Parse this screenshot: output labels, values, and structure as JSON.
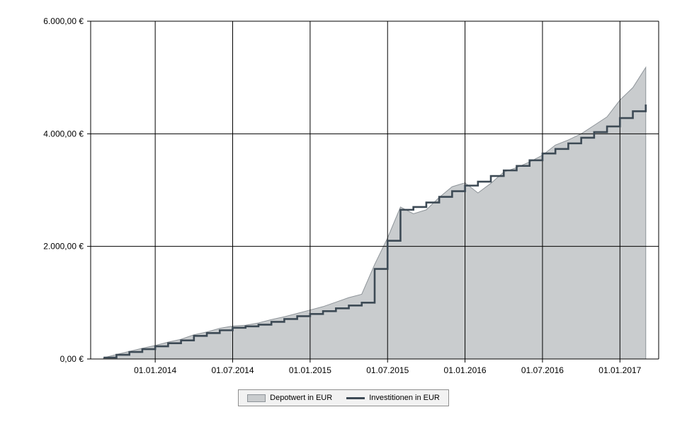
{
  "chart_data": {
    "type": "area",
    "title": "",
    "xlabel": "",
    "ylabel": "",
    "ylim": [
      0,
      6000
    ],
    "grid": true,
    "legend_position": "bottom",
    "x_months": [
      "2013-09",
      "2013-10",
      "2013-11",
      "2013-12",
      "2014-01",
      "2014-02",
      "2014-03",
      "2014-04",
      "2014-05",
      "2014-06",
      "2014-07",
      "2014-08",
      "2014-09",
      "2014-10",
      "2014-11",
      "2014-12",
      "2015-01",
      "2015-02",
      "2015-03",
      "2015-04",
      "2015-05",
      "2015-06",
      "2015-07",
      "2015-08",
      "2015-09",
      "2015-10",
      "2015-11",
      "2015-12",
      "2016-01",
      "2016-02",
      "2016-03",
      "2016-04",
      "2016-05",
      "2016-06",
      "2016-07",
      "2016-08",
      "2016-09",
      "2016-10",
      "2016-11",
      "2016-12",
      "2017-01",
      "2017-02",
      "2017-03"
    ],
    "x_ticks": [
      {
        "month": "2014-01",
        "label": "01.01.2014"
      },
      {
        "month": "2014-07",
        "label": "01.07.2014"
      },
      {
        "month": "2015-01",
        "label": "01.01.2015"
      },
      {
        "month": "2015-07",
        "label": "01.07.2015"
      },
      {
        "month": "2016-01",
        "label": "01.01.2016"
      },
      {
        "month": "2016-07",
        "label": "01.07.2016"
      },
      {
        "month": "2017-01",
        "label": "01.01.2017"
      }
    ],
    "y_ticks": [
      {
        "value": 0,
        "label": "0,00 €"
      },
      {
        "value": 2000,
        "label": "2.000,00 €"
      },
      {
        "value": 4000,
        "label": "4.000,00 €"
      },
      {
        "value": 6000,
        "label": "6.000,00 €"
      }
    ],
    "series": [
      {
        "name": "Depotwert in EUR",
        "kind": "area",
        "fill": "#c9ccce",
        "stroke": "#8e9499",
        "values": [
          20,
          80,
          135,
          190,
          240,
          300,
          350,
          430,
          480,
          545,
          585,
          600,
          640,
          700,
          750,
          810,
          870,
          930,
          1010,
          1090,
          1150,
          1680,
          2150,
          2700,
          2580,
          2650,
          2870,
          3060,
          3130,
          2950,
          3120,
          3320,
          3400,
          3500,
          3620,
          3800,
          3890,
          4000,
          4150,
          4300,
          4600,
          4820,
          5180
        ]
      },
      {
        "name": "Investitionen in EUR",
        "kind": "step-line",
        "stroke": "#3d4a55",
        "values": [
          25,
          75,
          125,
          175,
          225,
          280,
          330,
          410,
          460,
          510,
          555,
          580,
          610,
          660,
          710,
          760,
          800,
          850,
          900,
          950,
          1000,
          1600,
          2100,
          2650,
          2700,
          2780,
          2880,
          2980,
          3080,
          3150,
          3250,
          3350,
          3430,
          3530,
          3650,
          3730,
          3830,
          3930,
          4030,
          4130,
          4280,
          4400,
          4520
        ]
      }
    ]
  }
}
